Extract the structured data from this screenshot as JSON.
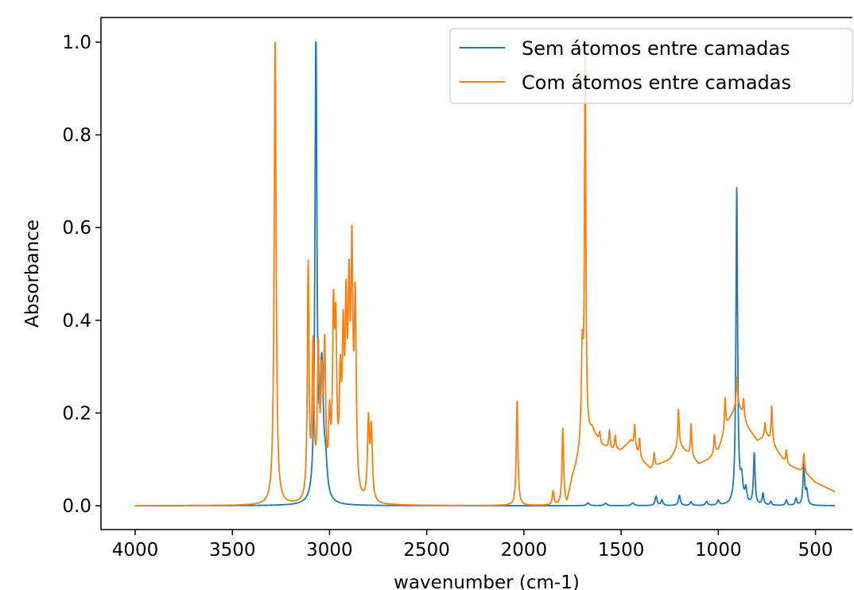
{
  "chart_data": {
    "type": "line",
    "xlabel": "wavenumber (cm-1)",
    "ylabel": "Absorbance",
    "xlim": [
      4000,
      400
    ],
    "x_axis_reversed": true,
    "ylim": [
      0.0,
      1.0
    ],
    "x_ticks": [
      4000,
      3500,
      3000,
      2500,
      2000,
      1500,
      1000,
      500
    ],
    "x_tick_labels": [
      "4000",
      "3500",
      "3000",
      "2500",
      "2000",
      "1500",
      "1000",
      "500"
    ],
    "y_ticks": [
      0.0,
      0.2,
      0.4,
      0.6,
      0.8,
      1.0
    ],
    "y_tick_labels": [
      "0.0",
      "0.2",
      "0.4",
      "0.6",
      "0.8",
      "1.0"
    ],
    "grid": false,
    "legend_position": "top-right",
    "series": [
      {
        "name": "Sem átomos entre camadas",
        "color": "#1f77b4",
        "peaks": [
          {
            "x": 3070,
            "height": 1.0,
            "width": 6
          },
          {
            "x": 3040,
            "height": 0.28,
            "width": 10
          },
          {
            "x": 3020,
            "height": 0.06,
            "width": 10
          },
          {
            "x": 1670,
            "height": 0.006,
            "width": 8
          },
          {
            "x": 1580,
            "height": 0.005,
            "width": 8
          },
          {
            "x": 1440,
            "height": 0.006,
            "width": 8
          },
          {
            "x": 1320,
            "height": 0.02,
            "width": 6
          },
          {
            "x": 1290,
            "height": 0.012,
            "width": 6
          },
          {
            "x": 1200,
            "height": 0.022,
            "width": 6
          },
          {
            "x": 1140,
            "height": 0.008,
            "width": 6
          },
          {
            "x": 1060,
            "height": 0.008,
            "width": 6
          },
          {
            "x": 1000,
            "height": 0.01,
            "width": 6
          },
          {
            "x": 905,
            "height": 0.68,
            "width": 5
          },
          {
            "x": 880,
            "height": 0.05,
            "width": 8
          },
          {
            "x": 858,
            "height": 0.03,
            "width": 6
          },
          {
            "x": 815,
            "height": 0.11,
            "width": 5
          },
          {
            "x": 770,
            "height": 0.025,
            "width": 5
          },
          {
            "x": 730,
            "height": 0.008,
            "width": 5
          },
          {
            "x": 650,
            "height": 0.012,
            "width": 5
          },
          {
            "x": 600,
            "height": 0.015,
            "width": 5
          },
          {
            "x": 560,
            "height": 0.085,
            "width": 5
          },
          {
            "x": 545,
            "height": 0.03,
            "width": 6
          }
        ]
      },
      {
        "name": "Com átomos entre camadas",
        "color": "#ff7f0e",
        "peaks": [
          {
            "x": 3280,
            "height": 1.0,
            "width": 6
          },
          {
            "x": 3110,
            "height": 0.5,
            "width": 5
          },
          {
            "x": 3085,
            "height": 0.32,
            "width": 6
          },
          {
            "x": 3058,
            "height": 0.3,
            "width": 6
          },
          {
            "x": 3040,
            "height": 0.22,
            "width": 6
          },
          {
            "x": 3025,
            "height": 0.3,
            "width": 6
          },
          {
            "x": 3000,
            "height": 0.15,
            "width": 6
          },
          {
            "x": 2980,
            "height": 0.36,
            "width": 6
          },
          {
            "x": 2968,
            "height": 0.32,
            "width": 6
          },
          {
            "x": 2945,
            "height": 0.22,
            "width": 6
          },
          {
            "x": 2930,
            "height": 0.3,
            "width": 6
          },
          {
            "x": 2915,
            "height": 0.35,
            "width": 6
          },
          {
            "x": 2900,
            "height": 0.38,
            "width": 6
          },
          {
            "x": 2885,
            "height": 0.48,
            "width": 6
          },
          {
            "x": 2868,
            "height": 0.4,
            "width": 6
          },
          {
            "x": 2800,
            "height": 0.17,
            "width": 6
          },
          {
            "x": 2785,
            "height": 0.15,
            "width": 6
          },
          {
            "x": 2035,
            "height": 0.225,
            "width": 5
          },
          {
            "x": 1850,
            "height": 0.03,
            "width": 5
          },
          {
            "x": 1800,
            "height": 0.165,
            "width": 5
          },
          {
            "x": 1700,
            "height": 0.2,
            "width": 6
          },
          {
            "x": 1685,
            "height": 0.85,
            "width": 4
          }
        ],
        "baseline": [
          [
            1780,
            0.0
          ],
          [
            1750,
            0.06
          ],
          [
            1700,
            0.12
          ],
          [
            1650,
            0.16
          ],
          [
            1600,
            0.13
          ],
          [
            1550,
            0.12
          ],
          [
            1500,
            0.12
          ],
          [
            1450,
            0.14
          ],
          [
            1400,
            0.1
          ],
          [
            1350,
            0.08
          ],
          [
            1300,
            0.09
          ],
          [
            1250,
            0.1
          ],
          [
            1200,
            0.13
          ],
          [
            1150,
            0.11
          ],
          [
            1100,
            0.09
          ],
          [
            1050,
            0.1
          ],
          [
            1000,
            0.12
          ],
          [
            950,
            0.18
          ],
          [
            900,
            0.22
          ],
          [
            850,
            0.17
          ],
          [
            800,
            0.14
          ],
          [
            750,
            0.15
          ],
          [
            700,
            0.12
          ],
          [
            650,
            0.09
          ],
          [
            600,
            0.08
          ],
          [
            550,
            0.07
          ],
          [
            500,
            0.05
          ],
          [
            450,
            0.04
          ],
          [
            400,
            0.03
          ]
        ],
        "extra_peaks": [
          {
            "x": 1610,
            "height": 0.02,
            "width": 4
          },
          {
            "x": 1560,
            "height": 0.04,
            "width": 4
          },
          {
            "x": 1530,
            "height": 0.03,
            "width": 4
          },
          {
            "x": 1430,
            "height": 0.05,
            "width": 4
          },
          {
            "x": 1405,
            "height": 0.04,
            "width": 4
          },
          {
            "x": 1330,
            "height": 0.03,
            "width": 4
          },
          {
            "x": 1205,
            "height": 0.08,
            "width": 4
          },
          {
            "x": 1140,
            "height": 0.07,
            "width": 4
          },
          {
            "x": 1020,
            "height": 0.04,
            "width": 4
          },
          {
            "x": 965,
            "height": 0.07,
            "width": 4
          },
          {
            "x": 905,
            "height": 0.06,
            "width": 4
          },
          {
            "x": 870,
            "height": 0.04,
            "width": 4
          },
          {
            "x": 760,
            "height": 0.03,
            "width": 4
          },
          {
            "x": 725,
            "height": 0.08,
            "width": 4
          },
          {
            "x": 650,
            "height": 0.03,
            "width": 4
          },
          {
            "x": 560,
            "height": 0.04,
            "width": 4
          }
        ]
      }
    ]
  }
}
